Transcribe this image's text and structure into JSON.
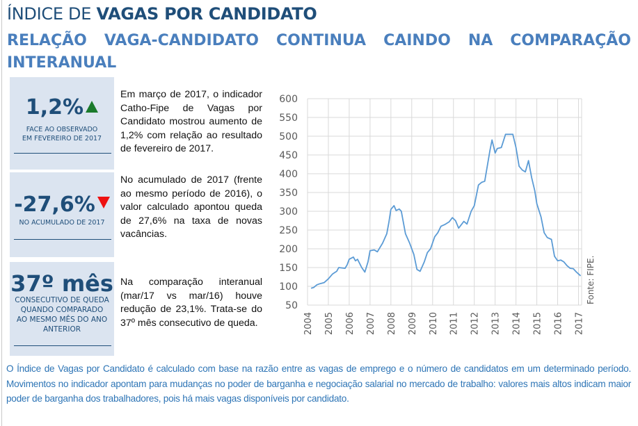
{
  "header": {
    "title_light": "ÍNDICE DE",
    "title_bold": "VAGAS POR CANDIDATO",
    "subtitle_words": [
      "RELAÇÃO",
      "VAGA-CANDIDATO",
      "CONTINUA",
      "CAINDO",
      "NA",
      "COMPARAÇÃO"
    ],
    "subtitle_line2": "INTERANUAL"
  },
  "kpis": [
    {
      "value": "1,2%",
      "trend": "up",
      "trend_icon": "triangle-up-icon",
      "caption_lines": [
        "FACE AO OBSERVADO",
        "EM FEVEREIRO DE 2017"
      ],
      "description": "Em março de 2017, o indicador Catho-Fipe de Vagas por Candidato mostrou aumento de 1,2% com relação ao resultado de fevereiro de 2017."
    },
    {
      "value": "-27,6%",
      "trend": "down",
      "trend_icon": "triangle-down-icon",
      "caption_lines": [
        "NO ACUMULADO DE 2017"
      ],
      "description": "No acumulado de 2017 (frente ao mesmo período de 2016), o valor calculado apontou queda de 27,6% na taxa de novas vacâncias."
    },
    {
      "value": "37º mês",
      "trend": "none",
      "caption_lines": [
        "CONSECUTIVO DE QUEDA",
        "QUANDO COMPARADO",
        "AO MESMO MÊS DO ANO",
        "ANTERIOR"
      ],
      "description": "Na comparação interanual (mar/17 vs mar/16) houve redução de 23,1%. Trata-se do 37º mês consecutivo de queda."
    }
  ],
  "colors": {
    "title_dark": "#1f4e79",
    "title_light": "#4a7fbd",
    "kpi_bg": "#dbe4f0",
    "up": "#1a7a2b",
    "down": "#ee1111",
    "line": "#5b9bd5",
    "grid": "#d9d9d9",
    "footer_text": "#2e75b6"
  },
  "chart_data": {
    "type": "line",
    "title": "",
    "xlabel": "",
    "ylabel": "",
    "source_note": "Fonte: FIPE.",
    "ylim": [
      50,
      600
    ],
    "yticks": [
      50,
      100,
      150,
      200,
      250,
      300,
      350,
      400,
      450,
      500,
      550,
      600
    ],
    "xlim": [
      2004,
      2017.15
    ],
    "xticks": [
      "2004",
      "2005",
      "2006",
      "2007",
      "2008",
      "2009",
      "2010",
      "2011",
      "2012",
      "2013",
      "2014",
      "2015",
      "2016",
      "2017"
    ],
    "grid": true,
    "series": [
      {
        "name": "Índice de Vagas por Candidato",
        "x": [
          2004.17,
          2004.3,
          2004.45,
          2004.6,
          2004.8,
          2005.0,
          2005.2,
          2005.4,
          2005.5,
          2005.8,
          2005.9,
          2006.0,
          2006.2,
          2006.3,
          2006.4,
          2006.6,
          2006.75,
          2006.9,
          2007.0,
          2007.2,
          2007.35,
          2007.6,
          2007.8,
          2007.9,
          2008.0,
          2008.15,
          2008.25,
          2008.4,
          2008.5,
          2008.7,
          2008.9,
          2009.1,
          2009.25,
          2009.4,
          2009.6,
          2009.75,
          2009.9,
          2010.1,
          2010.25,
          2010.4,
          2010.6,
          2010.8,
          2010.95,
          2011.1,
          2011.25,
          2011.5,
          2011.65,
          2011.85,
          2012.0,
          2012.2,
          2012.35,
          2012.5,
          2012.75,
          2012.85,
          2013.0,
          2013.1,
          2013.3,
          2013.5,
          2013.7,
          2013.85,
          2014.0,
          2014.15,
          2014.3,
          2014.45,
          2014.6,
          2014.75,
          2014.9,
          2015.0,
          2015.2,
          2015.35,
          2015.5,
          2015.7,
          2015.85,
          2016.0,
          2016.15,
          2016.3,
          2016.45,
          2016.6,
          2016.75,
          2016.9,
          2017.0,
          2017.1
        ],
        "values": [
          95,
          97,
          104,
          107,
          110,
          120,
          133,
          140,
          150,
          148,
          157,
          172,
          178,
          168,
          172,
          150,
          138,
          165,
          195,
          197,
          192,
          215,
          240,
          270,
          305,
          315,
          302,
          306,
          300,
          240,
          215,
          185,
          145,
          140,
          165,
          190,
          200,
          232,
          243,
          260,
          265,
          272,
          283,
          275,
          255,
          273,
          266,
          300,
          315,
          370,
          377,
          380,
          462,
          490,
          455,
          467,
          470,
          505,
          505,
          505,
          470,
          420,
          410,
          405,
          435,
          390,
          355,
          320,
          285,
          243,
          230,
          225,
          180,
          168,
          170,
          165,
          155,
          148,
          147,
          138,
          133,
          128
        ]
      }
    ]
  },
  "footer": {
    "text": "O Índice de Vagas por Candidato é calculado com base na razão entre as vagas de emprego e o número de candidatos em um determinado período. Movimentos no indicador apontam para mudanças no poder de barganha e negociação salarial no mercado de trabalho: valores mais altos indicam maior poder de barganha dos trabalhadores, pois há mais vagas disponíveis por candidato."
  }
}
